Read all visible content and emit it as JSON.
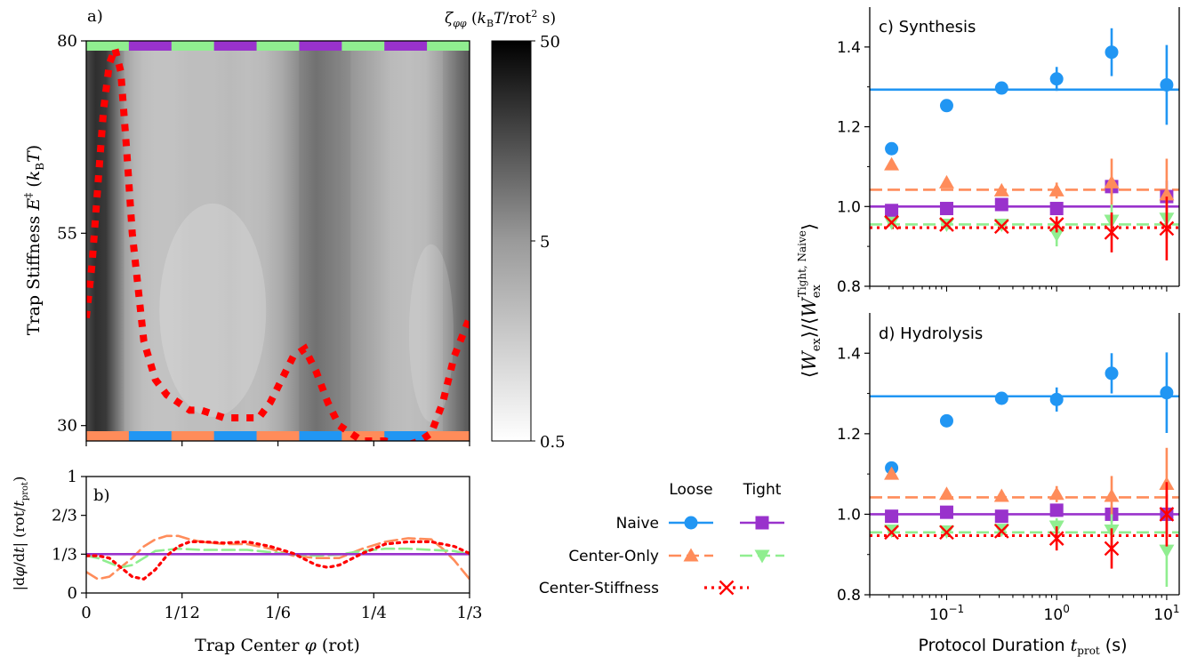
{
  "figure": {
    "panel_a_label": "a)",
    "panel_b_label": "b)",
    "panel_c_label": "c) Synthesis",
    "panel_d_label": "d) Hydrolysis"
  },
  "colors": {
    "naive_loose": "#2196f3",
    "naive_tight": "#9932cc",
    "center_only_loose": "#ff8c5a",
    "center_only_tight": "#90ee90",
    "center_stiffness": "#ff0000"
  },
  "chart_data": [
    {
      "id": "a",
      "type": "heatmap",
      "xlabel": "Trap Center φ (rot)",
      "ylabel": "Trap Stiffness E‡ (kBT)",
      "xlim": [
        0,
        0.3333
      ],
      "ylim": [
        28,
        80
      ],
      "x_ticks": [
        0,
        0.0833,
        0.1667,
        0.25,
        0.3333
      ],
      "x_tick_labels": [
        "0",
        "1/12",
        "1/6",
        "1/4",
        "1/3"
      ],
      "y_ticks": [
        30,
        55,
        80
      ],
      "y_tick_labels": [
        "30",
        "55",
        "80"
      ],
      "colorbar": {
        "label": "ζφφ (kBT/rot² s)",
        "scale": "log",
        "range": [
          0.5,
          50
        ],
        "tick_labels": [
          "0.5",
          "5",
          "50"
        ]
      },
      "friction_profile": {
        "phi": [
          0,
          0.008,
          0.017,
          0.025,
          0.033,
          0.042,
          0.05,
          0.06,
          0.075,
          0.09,
          0.11,
          0.125,
          0.14,
          0.155,
          0.17,
          0.185,
          0.2,
          0.215,
          0.23,
          0.25,
          0.265,
          0.28,
          0.295,
          0.31,
          0.3333
        ],
        "level": [
          0.75,
          0.9,
          0.85,
          0.6,
          0.35,
          0.25,
          0.2,
          0.18,
          0.18,
          0.2,
          0.2,
          0.22,
          0.2,
          0.22,
          0.3,
          0.45,
          0.55,
          0.48,
          0.4,
          0.3,
          0.22,
          0.2,
          0.22,
          0.35,
          0.7
        ]
      },
      "top_band": {
        "colors": [
          "#90ee90",
          "#9932cc"
        ],
        "segments": 9
      },
      "bottom_band": {
        "colors": [
          "#ff8c5a",
          "#2196f3"
        ],
        "segments": 9
      },
      "series": [
        {
          "name": "Center-Stiffness",
          "color": "#ff0000",
          "style": "dotted",
          "x": [
            0,
            0.005,
            0.01,
            0.015,
            0.02,
            0.025,
            0.03,
            0.035,
            0.04,
            0.05,
            0.06,
            0.07,
            0.08,
            0.09,
            0.1,
            0.11,
            0.12,
            0.13,
            0.14,
            0.15,
            0.16,
            0.17,
            0.18,
            0.19,
            0.2,
            0.21,
            0.22,
            0.23,
            0.24,
            0.25,
            0.26,
            0.27,
            0.28,
            0.29,
            0.3,
            0.31,
            0.32,
            0.3333
          ],
          "y": [
            44,
            51,
            61,
            71,
            77,
            79,
            76,
            66,
            55,
            41,
            36,
            34,
            33,
            32,
            32,
            31.5,
            31,
            31,
            31,
            31,
            33,
            36,
            39,
            40,
            37,
            33,
            30,
            29,
            28,
            28,
            28,
            27.5,
            27.5,
            28,
            29,
            33,
            39,
            44
          ]
        }
      ]
    },
    {
      "id": "b",
      "type": "line",
      "xlabel": "Trap Center φ (rot)",
      "ylabel": "|dφ/dt| (rot/tprot)",
      "xlim": [
        0,
        0.3333
      ],
      "ylim": [
        0,
        1
      ],
      "x_ticks": [
        0,
        0.0833,
        0.1667,
        0.25,
        0.3333
      ],
      "x_tick_labels": [
        "0",
        "1/12",
        "1/6",
        "1/4",
        "1/3"
      ],
      "y_ticks": [
        0,
        0.3333,
        0.6667,
        1
      ],
      "y_tick_labels": [
        "0",
        "1/3",
        "2/3",
        "1"
      ],
      "series": [
        {
          "name": "Naive",
          "color": "#9932cc",
          "style": "solid",
          "x": [
            0,
            0.3333
          ],
          "y": [
            0.3333,
            0.3333
          ]
        },
        {
          "name": "Center-Only",
          "color": "#ff8c5a",
          "style": "dashed",
          "x": [
            0,
            0.01,
            0.02,
            0.03,
            0.04,
            0.05,
            0.06,
            0.07,
            0.08,
            0.09,
            0.1,
            0.12,
            0.14,
            0.16,
            0.18,
            0.2,
            0.22,
            0.24,
            0.26,
            0.28,
            0.3,
            0.31,
            0.32,
            0.3333
          ],
          "y": [
            0.18,
            0.12,
            0.14,
            0.22,
            0.3,
            0.4,
            0.46,
            0.49,
            0.49,
            0.46,
            0.44,
            0.42,
            0.42,
            0.38,
            0.32,
            0.3,
            0.3,
            0.38,
            0.44,
            0.47,
            0.46,
            0.38,
            0.28,
            0.12
          ]
        },
        {
          "name": "Center-Only (tight)",
          "color": "#90ee90",
          "style": "dashed",
          "x": [
            0,
            0.01,
            0.02,
            0.03,
            0.04,
            0.05,
            0.06,
            0.08,
            0.1,
            0.12,
            0.14,
            0.16,
            0.18,
            0.2,
            0.22,
            0.24,
            0.26,
            0.28,
            0.3,
            0.32,
            0.3333
          ],
          "y": [
            0.32,
            0.3,
            0.26,
            0.22,
            0.24,
            0.3,
            0.36,
            0.38,
            0.37,
            0.37,
            0.37,
            0.35,
            0.33,
            0.32,
            0.33,
            0.36,
            0.38,
            0.38,
            0.37,
            0.36,
            0.33
          ]
        },
        {
          "name": "Center-Stiffness",
          "color": "#ff0000",
          "style": "dotted",
          "x": [
            0,
            0.01,
            0.02,
            0.03,
            0.04,
            0.05,
            0.06,
            0.07,
            0.08,
            0.09,
            0.1,
            0.12,
            0.14,
            0.16,
            0.18,
            0.2,
            0.21,
            0.22,
            0.24,
            0.26,
            0.28,
            0.3,
            0.31,
            0.32,
            0.3333
          ],
          "y": [
            0.32,
            0.32,
            0.3,
            0.22,
            0.14,
            0.12,
            0.2,
            0.32,
            0.4,
            0.44,
            0.44,
            0.43,
            0.44,
            0.4,
            0.34,
            0.24,
            0.22,
            0.24,
            0.34,
            0.42,
            0.44,
            0.44,
            0.42,
            0.4,
            0.34
          ]
        }
      ]
    },
    {
      "id": "c",
      "type": "scatter",
      "title": "c) Synthesis",
      "xlabel": "Protocol Duration tprot (s)",
      "ylabel": "⟨Wex⟩/⟨Wex^Tight, Naive⟩",
      "xscale": "log",
      "xlim": [
        0.02,
        13
      ],
      "ylim": [
        0.8,
        1.5
      ],
      "y_ticks": [
        0.8,
        1.0,
        1.2,
        1.4
      ],
      "y_tick_labels": [
        "0.8",
        "1.0",
        "1.2",
        "1.4"
      ],
      "x": [
        0.0316,
        0.1,
        0.316,
        1,
        3.16,
        10
      ],
      "series": [
        {
          "name": "Naive Loose",
          "color": "#2196f3",
          "marker": "circle",
          "y": [
            1.145,
            1.253,
            1.297,
            1.32,
            1.387,
            1.305
          ],
          "err": [
            0,
            0,
            0,
            0.03,
            0.06,
            0.1
          ],
          "mean": 1.293,
          "mean_style": "solid"
        },
        {
          "name": "Naive Tight",
          "color": "#9932cc",
          "marker": "square",
          "y": [
            0.99,
            0.995,
            1.005,
            0.995,
            1.05,
            1.025
          ],
          "err": [
            0,
            0,
            0,
            0.01,
            0.02,
            0.04
          ],
          "mean": 1.0,
          "mean_style": "solid"
        },
        {
          "name": "Center-Only Loose",
          "color": "#ff8c5a",
          "marker": "triangle-up",
          "y": [
            1.105,
            1.06,
            1.04,
            1.04,
            1.06,
            1.03
          ],
          "err": [
            0,
            0,
            0,
            0.02,
            0.06,
            0.09
          ],
          "mean": 1.042,
          "mean_style": "dashed"
        },
        {
          "name": "Center-Only Tight",
          "color": "#90ee90",
          "marker": "triangle-down",
          "y": [
            0.96,
            0.955,
            0.955,
            0.93,
            0.965,
            0.97
          ],
          "err": [
            0,
            0,
            0,
            0.03,
            0.04,
            0.05
          ],
          "mean": 0.955,
          "mean_style": "dashed"
        },
        {
          "name": "Center-Stiffness",
          "color": "#ff0000",
          "marker": "x",
          "y": [
            0.96,
            0.955,
            0.95,
            0.955,
            0.935,
            0.945
          ],
          "err": [
            0,
            0,
            0,
            0.02,
            0.05,
            0.08
          ],
          "mean": 0.947,
          "mean_style": "dotted"
        }
      ]
    },
    {
      "id": "d",
      "type": "scatter",
      "title": "d) Hydrolysis",
      "xlabel": "Protocol Duration tprot (s)",
      "ylabel": "⟨Wex⟩/⟨Wex^Tight, Naive⟩",
      "xscale": "log",
      "xlim": [
        0.02,
        13
      ],
      "ylim": [
        0.8,
        1.5
      ],
      "x_ticks": [
        0.1,
        1,
        10
      ],
      "y_ticks": [
        0.8,
        1.0,
        1.2,
        1.4
      ],
      "y_tick_labels": [
        "0.8",
        "1.0",
        "1.2",
        "1.4"
      ],
      "x": [
        0.0316,
        0.1,
        0.316,
        1,
        3.16,
        10
      ],
      "series": [
        {
          "name": "Naive Loose",
          "color": "#2196f3",
          "marker": "circle",
          "y": [
            1.115,
            1.232,
            1.288,
            1.285,
            1.35,
            1.302
          ],
          "err": [
            0,
            0,
            0,
            0.03,
            0.05,
            0.1
          ],
          "mean": 1.293,
          "mean_style": "solid"
        },
        {
          "name": "Naive Tight",
          "color": "#9932cc",
          "marker": "square",
          "y": [
            0.995,
            1.005,
            0.995,
            1.01,
            1.0,
            1.0
          ],
          "err": [
            0,
            0,
            0,
            0.01,
            0.02,
            0.05
          ],
          "mean": 1.0,
          "mean_style": "solid"
        },
        {
          "name": "Center-Only Loose",
          "color": "#ff8c5a",
          "marker": "triangle-up",
          "y": [
            1.1,
            1.05,
            1.045,
            1.05,
            1.045,
            1.075
          ],
          "err": [
            0,
            0,
            0,
            0.02,
            0.05,
            0.09
          ],
          "mean": 1.042,
          "mean_style": "dashed"
        },
        {
          "name": "Center-Only Tight",
          "color": "#90ee90",
          "marker": "triangle-down",
          "y": [
            0.96,
            0.958,
            0.962,
            0.97,
            0.96,
            0.91
          ],
          "err": [
            0,
            0,
            0,
            0.02,
            0.04,
            0.09
          ],
          "mean": 0.955,
          "mean_style": "dashed"
        },
        {
          "name": "Center-Stiffness",
          "color": "#ff0000",
          "marker": "x",
          "y": [
            0.955,
            0.955,
            0.958,
            0.94,
            0.915,
            1.0
          ],
          "err": [
            0,
            0,
            0,
            0.03,
            0.05,
            0.08
          ],
          "mean": 0.947,
          "mean_style": "dotted"
        }
      ]
    }
  ],
  "legend": {
    "col_loose": "Loose",
    "col_tight": "Tight",
    "rows": [
      {
        "label": "Naive",
        "loose_color": "#2196f3",
        "loose_marker": "circle",
        "loose_style": "solid",
        "tight_color": "#9932cc",
        "tight_marker": "square",
        "tight_style": "solid"
      },
      {
        "label": "Center-Only",
        "loose_color": "#ff8c5a",
        "loose_marker": "triangle-up",
        "loose_style": "dashed",
        "tight_color": "#90ee90",
        "tight_marker": "triangle-down",
        "tight_style": "dashed"
      },
      {
        "label": "Center-Stiffness",
        "loose_color": "#ff0000",
        "loose_marker": "x",
        "loose_style": "dotted",
        "tight_color": "",
        "tight_marker": "",
        "tight_style": ""
      }
    ]
  }
}
